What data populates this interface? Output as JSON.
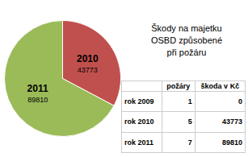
{
  "chart_data": {
    "type": "pie",
    "title": "Škody na majetku\nOSBD způsobené\npři požáru",
    "categories": [
      "2010",
      "2011"
    ],
    "values": [
      43773,
      89810
    ],
    "colors": [
      "#c0504d",
      "#9bbb59"
    ],
    "data_labels": true,
    "table": {
      "columns": [
        "požáry",
        "škoda v Kč"
      ],
      "rows": [
        {
          "label": "rok 2009",
          "values": [
            1,
            0
          ]
        },
        {
          "label": "rok 2010",
          "values": [
            5,
            43773
          ]
        },
        {
          "label": "rok 2011",
          "values": [
            7,
            89810
          ]
        }
      ]
    }
  }
}
